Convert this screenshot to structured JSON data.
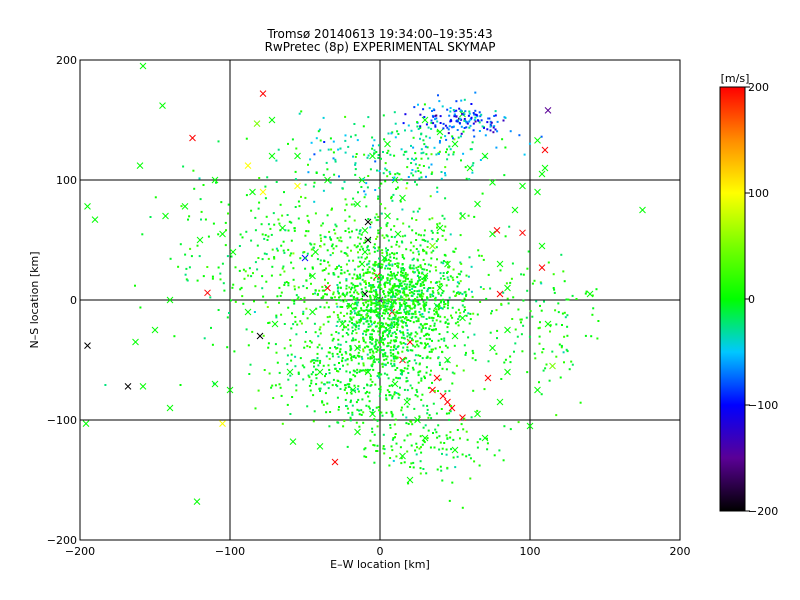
{
  "chart_data": {
    "type": "scatter",
    "title": "Tromsø 20140613 19:34:00–19:35:43",
    "subtitle": "RwPretec (8p) EXPERIMENTAL SKYMAP",
    "xlabel": "E–W location [km]",
    "ylabel": "N–S location [km]",
    "xlim": [
      -200,
      200
    ],
    "ylim": [
      -200,
      200
    ],
    "x_ticks": [
      -200,
      -100,
      0,
      100,
      200
    ],
    "y_ticks": [
      -200,
      -100,
      0,
      100,
      200
    ],
    "x_tick_labels": [
      "−200",
      "−100",
      "0",
      "100",
      "200"
    ],
    "y_tick_labels": [
      "−200",
      "−100",
      "0",
      "100",
      "200"
    ],
    "grid": true,
    "colorbar": {
      "label": "[m/s]",
      "range": [
        -200,
        200
      ],
      "ticks": [
        200,
        100,
        0,
        -100,
        -200
      ],
      "tick_labels": [
        "200",
        "100",
        "0",
        "−100",
        "−200"
      ],
      "colormap": [
        {
          "value": -200,
          "color": "#000000"
        },
        {
          "value": -150,
          "color": "#5a0096"
        },
        {
          "value": -100,
          "color": "#0000ff"
        },
        {
          "value": -50,
          "color": "#00c8ff"
        },
        {
          "value": 0,
          "color": "#00ff00"
        },
        {
          "value": 50,
          "color": "#78ff00"
        },
        {
          "value": 100,
          "color": "#ffff00"
        },
        {
          "value": 150,
          "color": "#ff8c00"
        },
        {
          "value": 200,
          "color": "#ff0000"
        }
      ]
    },
    "series": [
      {
        "marker": "x",
        "points": [
          [
            -158,
            195,
            0
          ],
          [
            -145,
            162,
            0
          ],
          [
            -78,
            172,
            200
          ],
          [
            -125,
            135,
            200
          ],
          [
            -82,
            147,
            50
          ],
          [
            -110,
            100,
            0
          ],
          [
            -130,
            78,
            0
          ],
          [
            -143,
            70,
            0
          ],
          [
            -195,
            78,
            0
          ],
          [
            -190,
            67,
            0
          ],
          [
            -120,
            50,
            0
          ],
          [
            -115,
            6,
            200
          ],
          [
            -140,
            0,
            0
          ],
          [
            -150,
            -25,
            0
          ],
          [
            -163,
            -35,
            0
          ],
          [
            -195,
            -38,
            -200
          ],
          [
            -168,
            -72,
            -200
          ],
          [
            -158,
            -72,
            0
          ],
          [
            -110,
            -70,
            0
          ],
          [
            -100,
            -75,
            0
          ],
          [
            -140,
            -90,
            0
          ],
          [
            -105,
            -103,
            100
          ],
          [
            -122,
            -168,
            0
          ],
          [
            -196,
            -103,
            0
          ],
          [
            -80,
            -30,
            -200
          ],
          [
            -72,
            150,
            0
          ],
          [
            -72,
            120,
            0
          ],
          [
            -55,
            120,
            0
          ],
          [
            -43,
            40,
            0
          ],
          [
            -35,
            100,
            0
          ],
          [
            -45,
            -10,
            0
          ],
          [
            -60,
            -60,
            0
          ],
          [
            -40,
            -60,
            0
          ],
          [
            -58,
            -118,
            0
          ],
          [
            -40,
            -122,
            0
          ],
          [
            -30,
            -135,
            200
          ],
          [
            -5,
            120,
            0
          ],
          [
            -12,
            100,
            0
          ],
          [
            -15,
            80,
            0
          ],
          [
            -8,
            65,
            -200
          ],
          [
            -10,
            58,
            0
          ],
          [
            -8,
            50,
            -200
          ],
          [
            -10,
            40,
            0
          ],
          [
            -12,
            30,
            0
          ],
          [
            -10,
            5,
            -200
          ],
          [
            -20,
            -5,
            0
          ],
          [
            -25,
            -20,
            0
          ],
          [
            -15,
            -40,
            0
          ],
          [
            -8,
            -60,
            0
          ],
          [
            -18,
            -75,
            0
          ],
          [
            -5,
            -95,
            0
          ],
          [
            -15,
            -110,
            0
          ],
          [
            5,
            130,
            0
          ],
          [
            10,
            100,
            0
          ],
          [
            15,
            85,
            0
          ],
          [
            5,
            70,
            0
          ],
          [
            12,
            55,
            0
          ],
          [
            3,
            35,
            0
          ],
          [
            -2,
            20,
            200
          ],
          [
            0,
            0,
            -150
          ],
          [
            -3,
            2,
            0
          ],
          [
            8,
            -10,
            200
          ],
          [
            5,
            -25,
            0
          ],
          [
            15,
            -50,
            200
          ],
          [
            20,
            -35,
            200
          ],
          [
            10,
            -70,
            0
          ],
          [
            18,
            -85,
            0
          ],
          [
            25,
            -100,
            0
          ],
          [
            15,
            -130,
            0
          ],
          [
            20,
            -150,
            0
          ],
          [
            30,
            150,
            0
          ],
          [
            40,
            140,
            0
          ],
          [
            55,
            155,
            0
          ],
          [
            50,
            130,
            0
          ],
          [
            60,
            110,
            0
          ],
          [
            70,
            120,
            0
          ],
          [
            75,
            98,
            0
          ],
          [
            65,
            80,
            0
          ],
          [
            55,
            70,
            0
          ],
          [
            40,
            60,
            0
          ],
          [
            35,
            45,
            50
          ],
          [
            45,
            30,
            0
          ],
          [
            30,
            20,
            0
          ],
          [
            40,
            10,
            0
          ],
          [
            38,
            -5,
            0
          ],
          [
            55,
            -15,
            0
          ],
          [
            50,
            -30,
            0
          ],
          [
            45,
            -50,
            0
          ],
          [
            38,
            -65,
            200
          ],
          [
            35,
            -75,
            200
          ],
          [
            42,
            -80,
            200
          ],
          [
            45,
            -85,
            200
          ],
          [
            48,
            -90,
            200
          ],
          [
            55,
            -98,
            200
          ],
          [
            65,
            -95,
            0
          ],
          [
            30,
            -115,
            0
          ],
          [
            50,
            -125,
            0
          ],
          [
            70,
            -115,
            0
          ],
          [
            80,
            -85,
            0
          ],
          [
            72,
            -65,
            200
          ],
          [
            85,
            -60,
            0
          ],
          [
            75,
            -40,
            0
          ],
          [
            85,
            -25,
            0
          ],
          [
            80,
            5,
            200
          ],
          [
            85,
            10,
            0
          ],
          [
            80,
            30,
            0
          ],
          [
            75,
            55,
            0
          ],
          [
            78,
            58,
            200
          ],
          [
            95,
            56,
            200
          ],
          [
            90,
            75,
            0
          ],
          [
            95,
            95,
            0
          ],
          [
            105,
            90,
            0
          ],
          [
            108,
            105,
            0
          ],
          [
            110,
            110,
            0
          ],
          [
            112,
            158,
            -150
          ],
          [
            110,
            125,
            200
          ],
          [
            105,
            133,
            0
          ],
          [
            108,
            45,
            0
          ],
          [
            108,
            27,
            200
          ],
          [
            112,
            -20,
            0
          ],
          [
            115,
            -55,
            50
          ],
          [
            105,
            -75,
            0
          ],
          [
            100,
            -105,
            0
          ],
          [
            140,
            5,
            0
          ],
          [
            175,
            75,
            0
          ],
          [
            -160,
            112,
            0
          ],
          [
            -88,
            112,
            100
          ],
          [
            -78,
            90,
            100
          ],
          [
            -85,
            90,
            0
          ],
          [
            -65,
            60,
            0
          ],
          [
            -50,
            35,
            -100
          ],
          [
            -35,
            10,
            200
          ],
          [
            -45,
            20,
            0
          ],
          [
            -105,
            55,
            0
          ],
          [
            -98,
            40,
            0
          ],
          [
            -88,
            -10,
            0
          ],
          [
            -70,
            -20,
            0
          ],
          [
            -55,
            95,
            100
          ]
        ]
      },
      {
        "marker": "dot",
        "clusters": [
          {
            "center": [
              10,
              -5
            ],
            "spread": [
              40,
              45
            ],
            "count": 900,
            "velocity": 0,
            "velocity_jitter": 15
          },
          {
            "center": [
              0,
              20
            ],
            "spread": [
              70,
              70
            ],
            "count": 650,
            "velocity": 5,
            "velocity_jitter": 20
          },
          {
            "center": [
              -10,
              -60
            ],
            "spread": [
              60,
              45
            ],
            "count": 450,
            "velocity": 0,
            "velocity_jitter": 15
          },
          {
            "center": [
              10,
              120
            ],
            "spread": [
              70,
              35
            ],
            "count": 220,
            "velocity": -20,
            "velocity_jitter": 25
          },
          {
            "center": [
              55,
              150
            ],
            "spread": [
              35,
              15
            ],
            "count": 150,
            "velocity": -80,
            "velocity_jitter": 30
          },
          {
            "center": [
              -80,
              40
            ],
            "spread": [
              70,
              80
            ],
            "count": 200,
            "velocity": 0,
            "velocity_jitter": 15
          },
          {
            "center": [
              110,
              -20
            ],
            "spread": [
              40,
              60
            ],
            "count": 120,
            "velocity": 0,
            "velocity_jitter": 15
          },
          {
            "center": [
              30,
              -120
            ],
            "spread": [
              50,
              30
            ],
            "count": 150,
            "velocity": 0,
            "velocity_jitter": 15
          }
        ]
      }
    ]
  }
}
